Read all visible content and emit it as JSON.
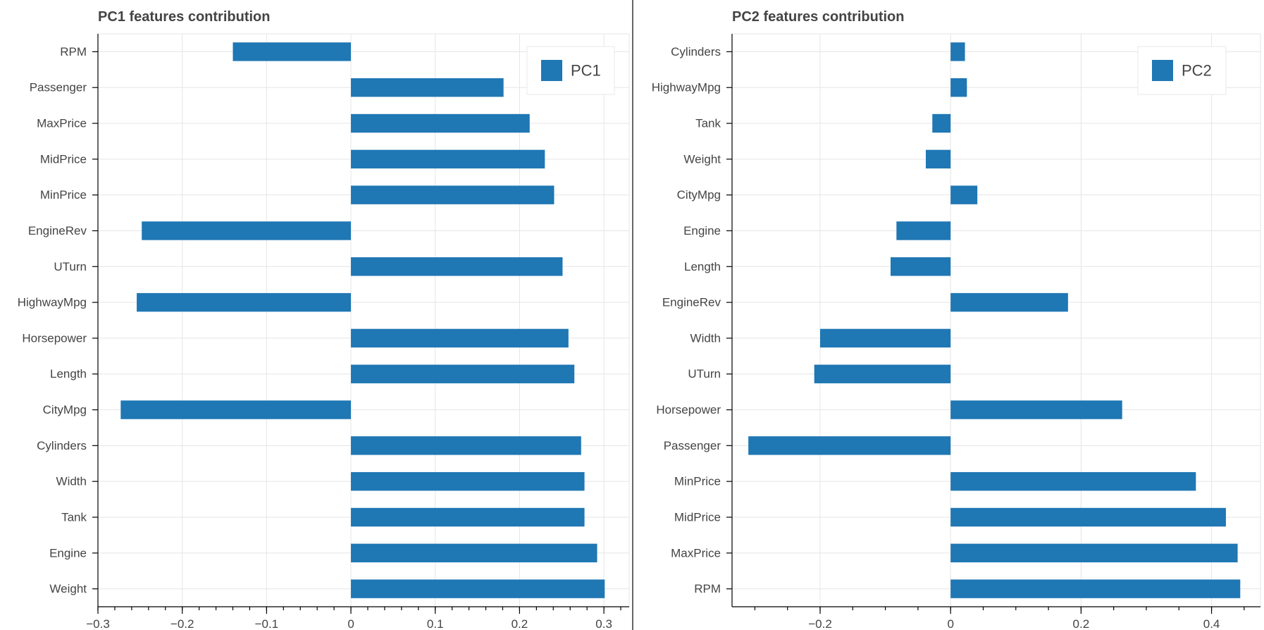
{
  "chart_data": [
    {
      "type": "bar",
      "orientation": "horizontal",
      "title": "PC1 features contribution",
      "categories": [
        "RPM",
        "Passenger",
        "MaxPrice",
        "MidPrice",
        "MinPrice",
        "EngineRev",
        "UTurn",
        "HighwayMpg",
        "Horsepower",
        "Length",
        "CityMpg",
        "Cylinders",
        "Width",
        "Tank",
        "Engine",
        "Weight"
      ],
      "series": [
        {
          "name": "PC1",
          "values": [
            -0.14,
            0.181,
            0.212,
            0.23,
            0.241,
            -0.248,
            0.251,
            -0.254,
            0.258,
            0.265,
            -0.273,
            0.273,
            0.277,
            0.277,
            0.292,
            0.301
          ]
        }
      ],
      "xlim": [
        -0.3,
        0.33
      ],
      "xticks": [
        -0.3,
        -0.2,
        -0.1,
        0,
        0.1,
        0.2,
        0.3
      ],
      "xtick_labels": [
        "−0.3",
        "−0.2",
        "−0.1",
        "0",
        "0.1",
        "0.2",
        "0.3"
      ],
      "minor_tick_step": 0.02,
      "grid": true,
      "legend_position": "top-right",
      "color": "#1f77b4"
    },
    {
      "type": "bar",
      "orientation": "horizontal",
      "title": "PC2 features contribution",
      "categories": [
        "Cylinders",
        "HighwayMpg",
        "Tank",
        "Weight",
        "CityMpg",
        "Engine",
        "Length",
        "EngineRev",
        "Width",
        "UTurn",
        "Horsepower",
        "Passenger",
        "MinPrice",
        "MidPrice",
        "MaxPrice",
        "RPM"
      ],
      "series": [
        {
          "name": "PC2",
          "values": [
            0.022,
            0.025,
            -0.028,
            -0.038,
            0.041,
            -0.083,
            -0.092,
            0.18,
            -0.2,
            -0.209,
            0.263,
            -0.31,
            0.376,
            0.422,
            0.44,
            0.444
          ]
        }
      ],
      "xlim": [
        -0.335,
        0.475
      ],
      "xticks": [
        -0.2,
        0,
        0.2,
        0.4
      ],
      "xtick_labels": [
        "−0.2",
        "0",
        "0.2",
        "0.4"
      ],
      "minor_tick_step": 0.05,
      "grid": true,
      "legend_position": "top-right",
      "color": "#1f77b4"
    }
  ]
}
